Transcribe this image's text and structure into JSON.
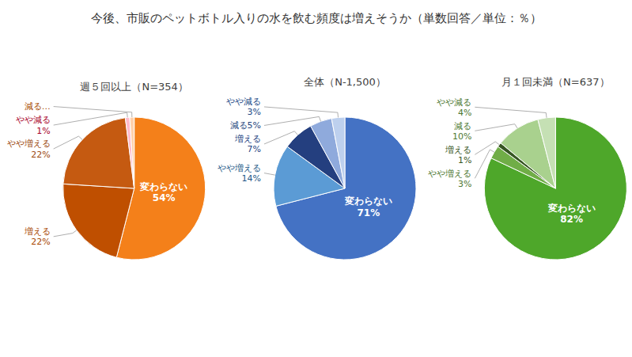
{
  "title": "今後、市販のペットボトル入りの水を飲む頻度は増えそうか（単数回答／単位：％）",
  "chart_data": [
    {
      "type": "pie",
      "title": "週５回以上（N=354）",
      "categories": [
        "変わらない\n54%",
        "増える\n22%",
        "やや増える\n22%",
        "やや減る\n1%",
        "減る…"
      ],
      "values": [
        54,
        22,
        22,
        1,
        1
      ],
      "colors": [
        "#F4801A",
        "#BF4F00",
        "#C55A11",
        "#FFBBCC",
        "#FFD0AA"
      ]
    },
    {
      "type": "pie",
      "title": "全体（N-1,500）",
      "categories": [
        "変わらない\n71%",
        "やや増える\n14%",
        "増える\n7%",
        "減る5%",
        "やや減る\n3%"
      ],
      "values": [
        71,
        14,
        7,
        5,
        3
      ],
      "colors": [
        "#4472C4",
        "#5B9BD5",
        "#243F7F",
        "#8FAADC",
        "#BDD0EE"
      ]
    },
    {
      "type": "pie",
      "title": "月１回未満（N=637）",
      "categories": [
        "変わらない\n82%",
        "やや増える\n3%",
        "増える\n1%",
        "減る\n10%",
        "やや減る\n4%"
      ],
      "values": [
        82,
        3,
        1,
        10,
        4
      ],
      "colors": [
        "#4EA72A",
        "#70AD47",
        "#375623",
        "#A9D18E",
        "#C5E0B4"
      ]
    }
  ]
}
